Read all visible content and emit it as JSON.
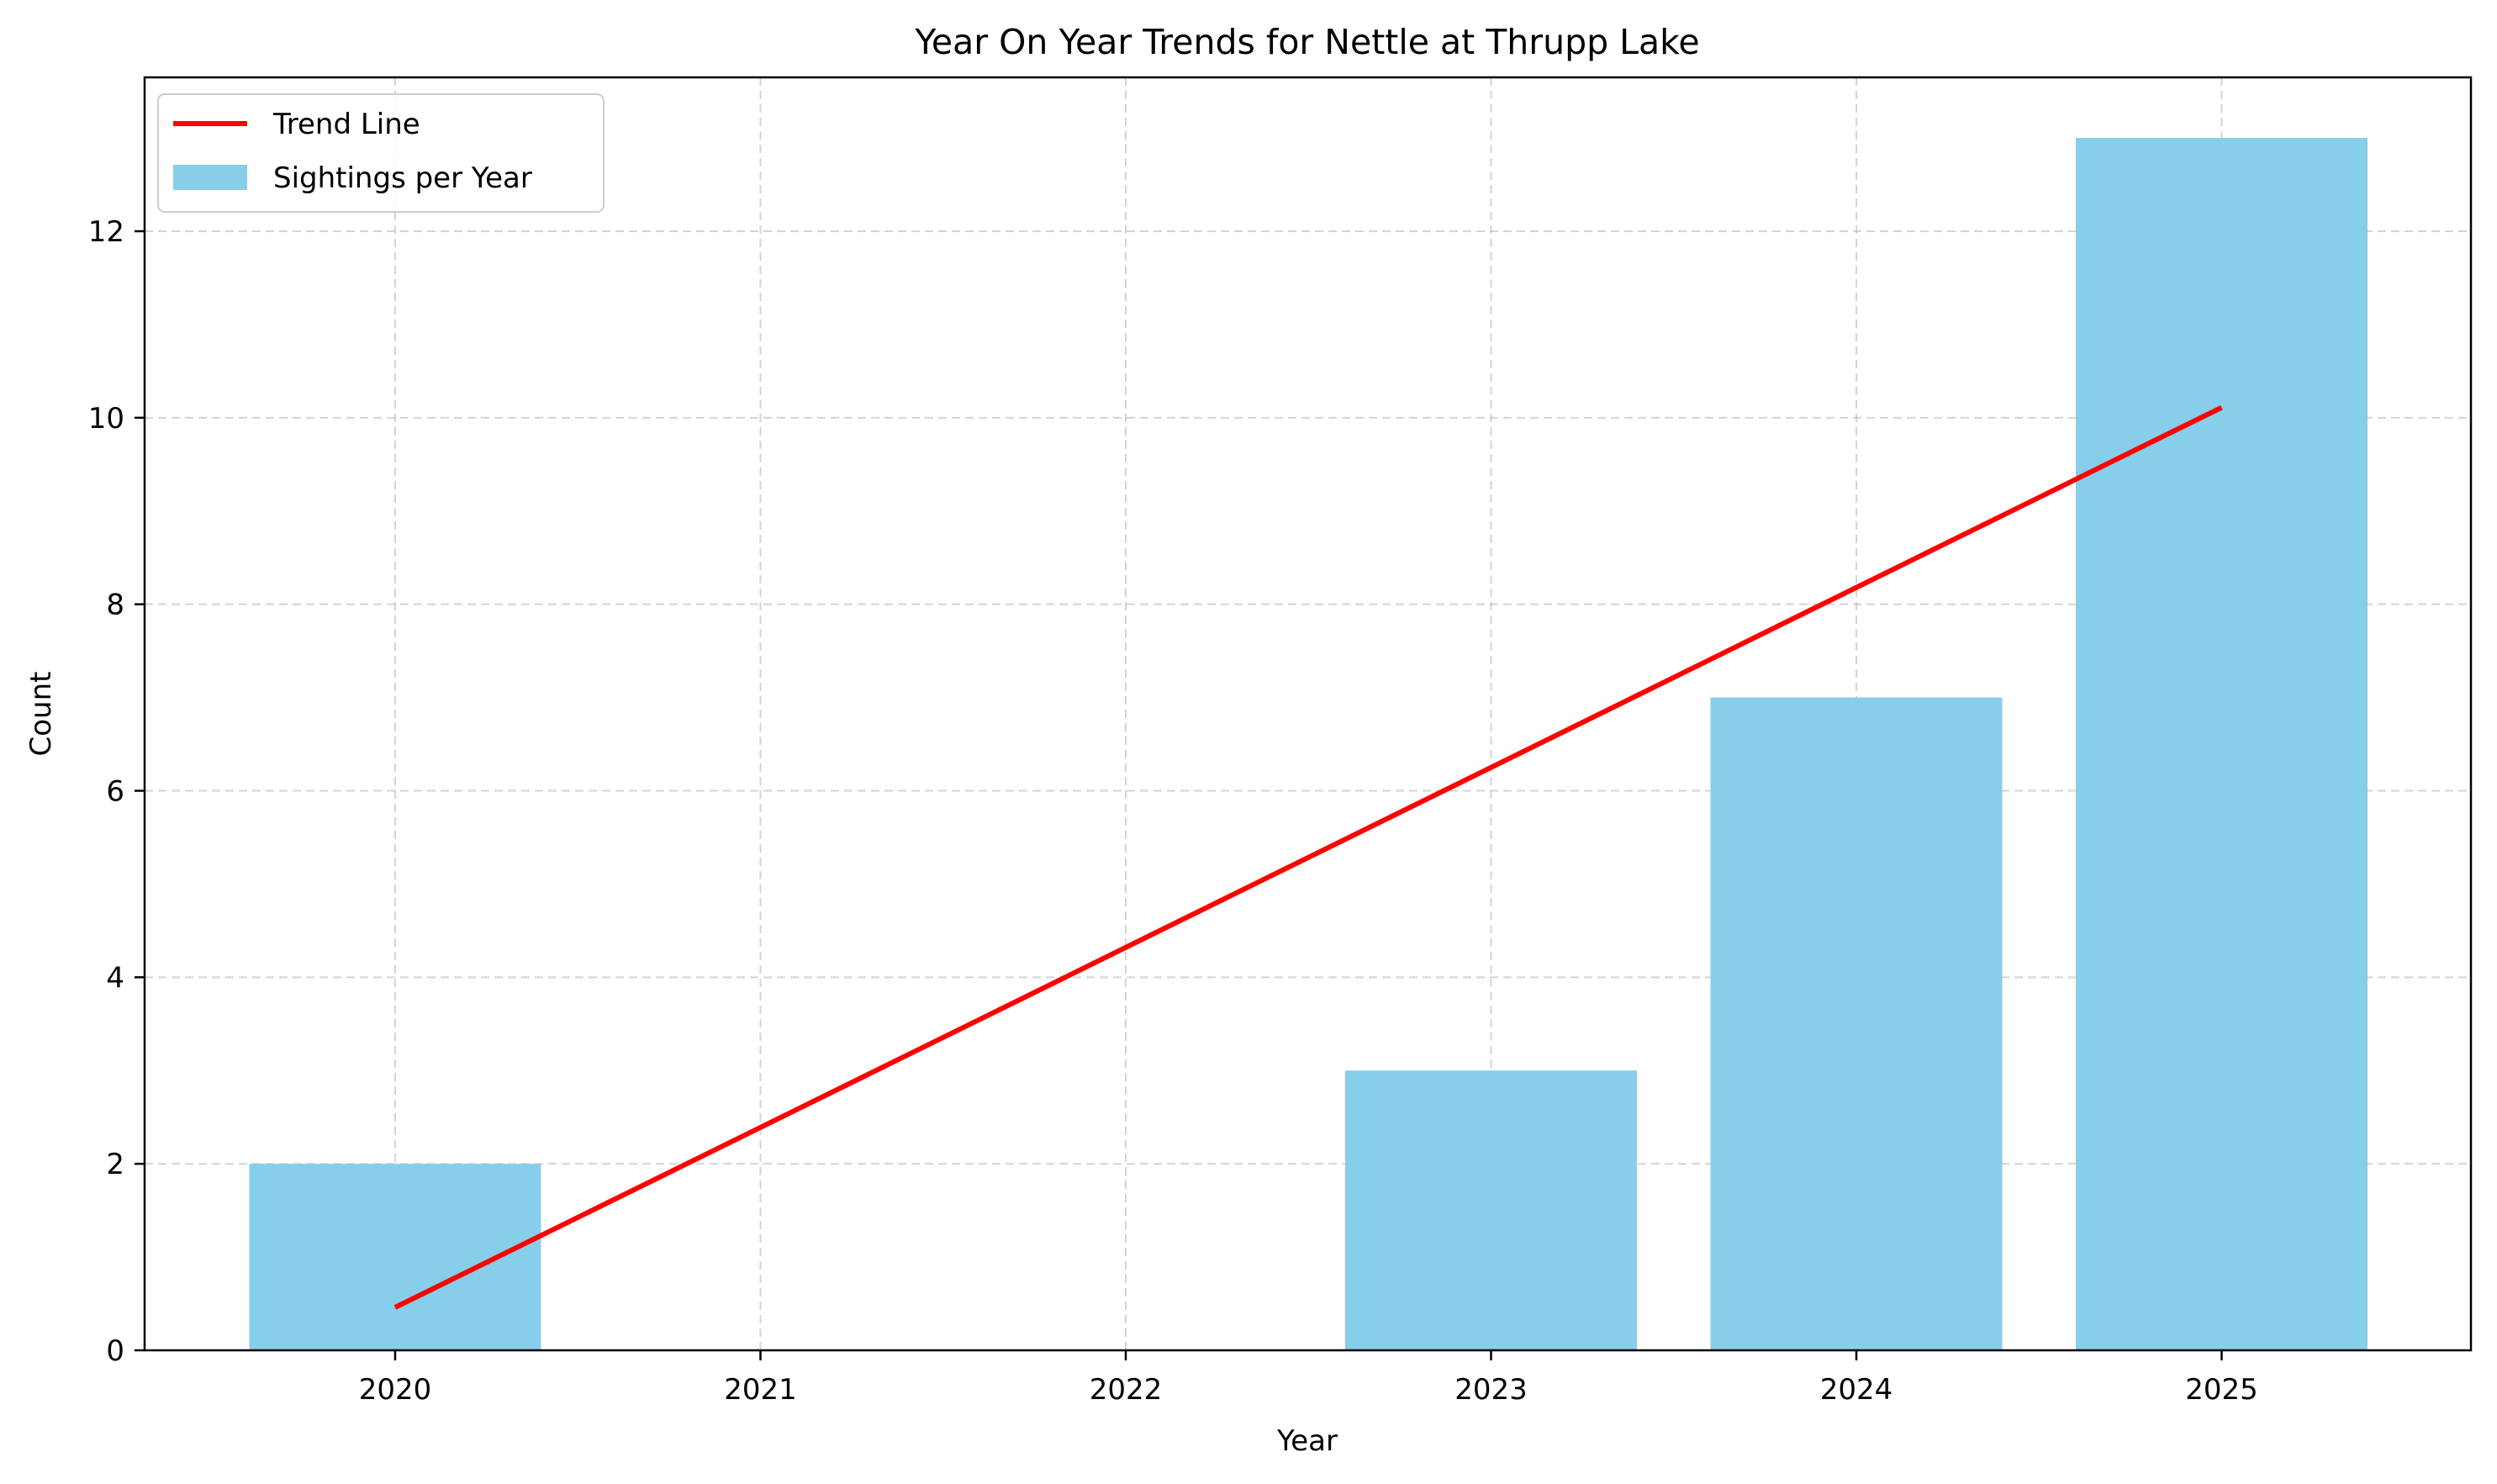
{
  "chart_data": {
    "type": "bar",
    "title": "Year On Year Trends for Nettle at Thrupp Lake",
    "xlabel": "Year",
    "ylabel": "Count",
    "categories": [
      "2020",
      "2021",
      "2022",
      "2023",
      "2024",
      "2025"
    ],
    "series": [
      {
        "name": "Sightings per Year",
        "type": "bar",
        "color": "#87CEEB",
        "values": [
          2,
          0,
          0,
          3,
          7,
          13
        ]
      },
      {
        "name": "Trend Line",
        "type": "line",
        "color": "#FF0000",
        "start": {
          "x": "2020",
          "y": 0.46
        },
        "end": {
          "x": "2025",
          "y": 10.11
        }
      }
    ],
    "yticks": [
      0,
      2,
      4,
      6,
      8,
      10,
      12
    ],
    "ylim": [
      0,
      13.65
    ],
    "grid": true,
    "legend": {
      "position": "top-left",
      "entries": [
        "Trend Line",
        "Sightings per Year"
      ]
    }
  }
}
